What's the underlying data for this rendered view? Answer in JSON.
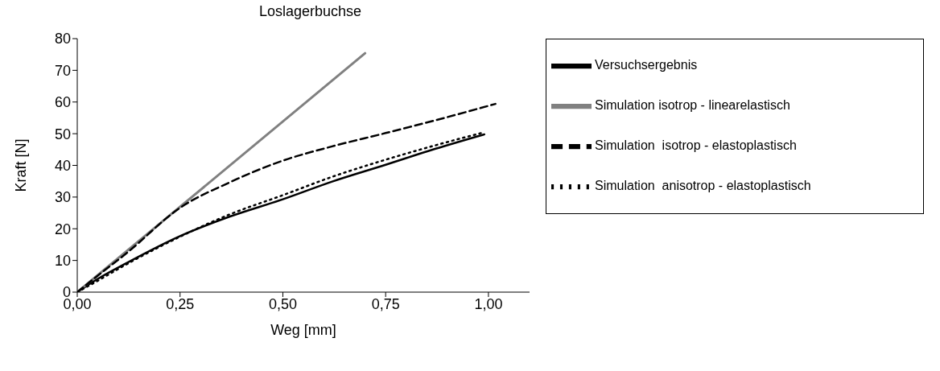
{
  "chart_data": {
    "type": "line",
    "title": "Loslagerbuchse",
    "xlabel": "Weg [mm]",
    "ylabel": "Kraft [N]",
    "xlim": [
      0,
      1.1
    ],
    "xticks": [
      {
        "value": 0,
        "label": "0,00"
      },
      {
        "value": 0.25,
        "label": "0,25"
      },
      {
        "value": 0.5,
        "label": "0,50"
      },
      {
        "value": 0.75,
        "label": "0,75"
      },
      {
        "value": 1,
        "label": "1,00"
      }
    ],
    "ylim": [
      0,
      80
    ],
    "yticks": [
      0,
      10,
      20,
      30,
      40,
      50,
      60,
      70,
      80
    ],
    "grid": false,
    "legend": "right",
    "marker": "none",
    "series": [
      {
        "name": "Versuchsergebnis",
        "color": "#000000",
        "line_style": "solid",
        "x": [
          0,
          0.05,
          0.12,
          0.25,
          0.37,
          0.5,
          0.62,
          0.75,
          0.87,
          0.99
        ],
        "values": [
          0,
          4.2,
          9.2,
          17.7,
          23.8,
          29.3,
          34.9,
          40.2,
          45.2,
          49.8
        ]
      },
      {
        "name": "Simulation isotrop - linearelastisch",
        "color": "#808080",
        "line_style": "solid",
        "x": [
          0,
          0.7
        ],
        "values": [
          0,
          75.4
        ]
      },
      {
        "name": "Simulation  isotrop - elastoplastisch",
        "color": "#000000",
        "line_style": "dashed",
        "x": [
          0,
          0.05,
          0.12,
          0.25,
          0.37,
          0.5,
          0.62,
          0.75,
          0.87,
          1.017
        ],
        "values": [
          0,
          5.2,
          12.3,
          26.6,
          34.6,
          41.5,
          46.0,
          50.2,
          54.2,
          59.4
        ]
      },
      {
        "name": "Simulation  anisotrop - elastoplastisch",
        "color": "#000000",
        "line_style": "dotted",
        "x": [
          0,
          0.05,
          0.12,
          0.25,
          0.37,
          0.5,
          0.62,
          0.75,
          0.87,
          0.985
        ],
        "values": [
          0,
          3.6,
          8.8,
          17.5,
          24.5,
          30.6,
          36.4,
          41.8,
          46.3,
          50.3
        ]
      }
    ]
  }
}
